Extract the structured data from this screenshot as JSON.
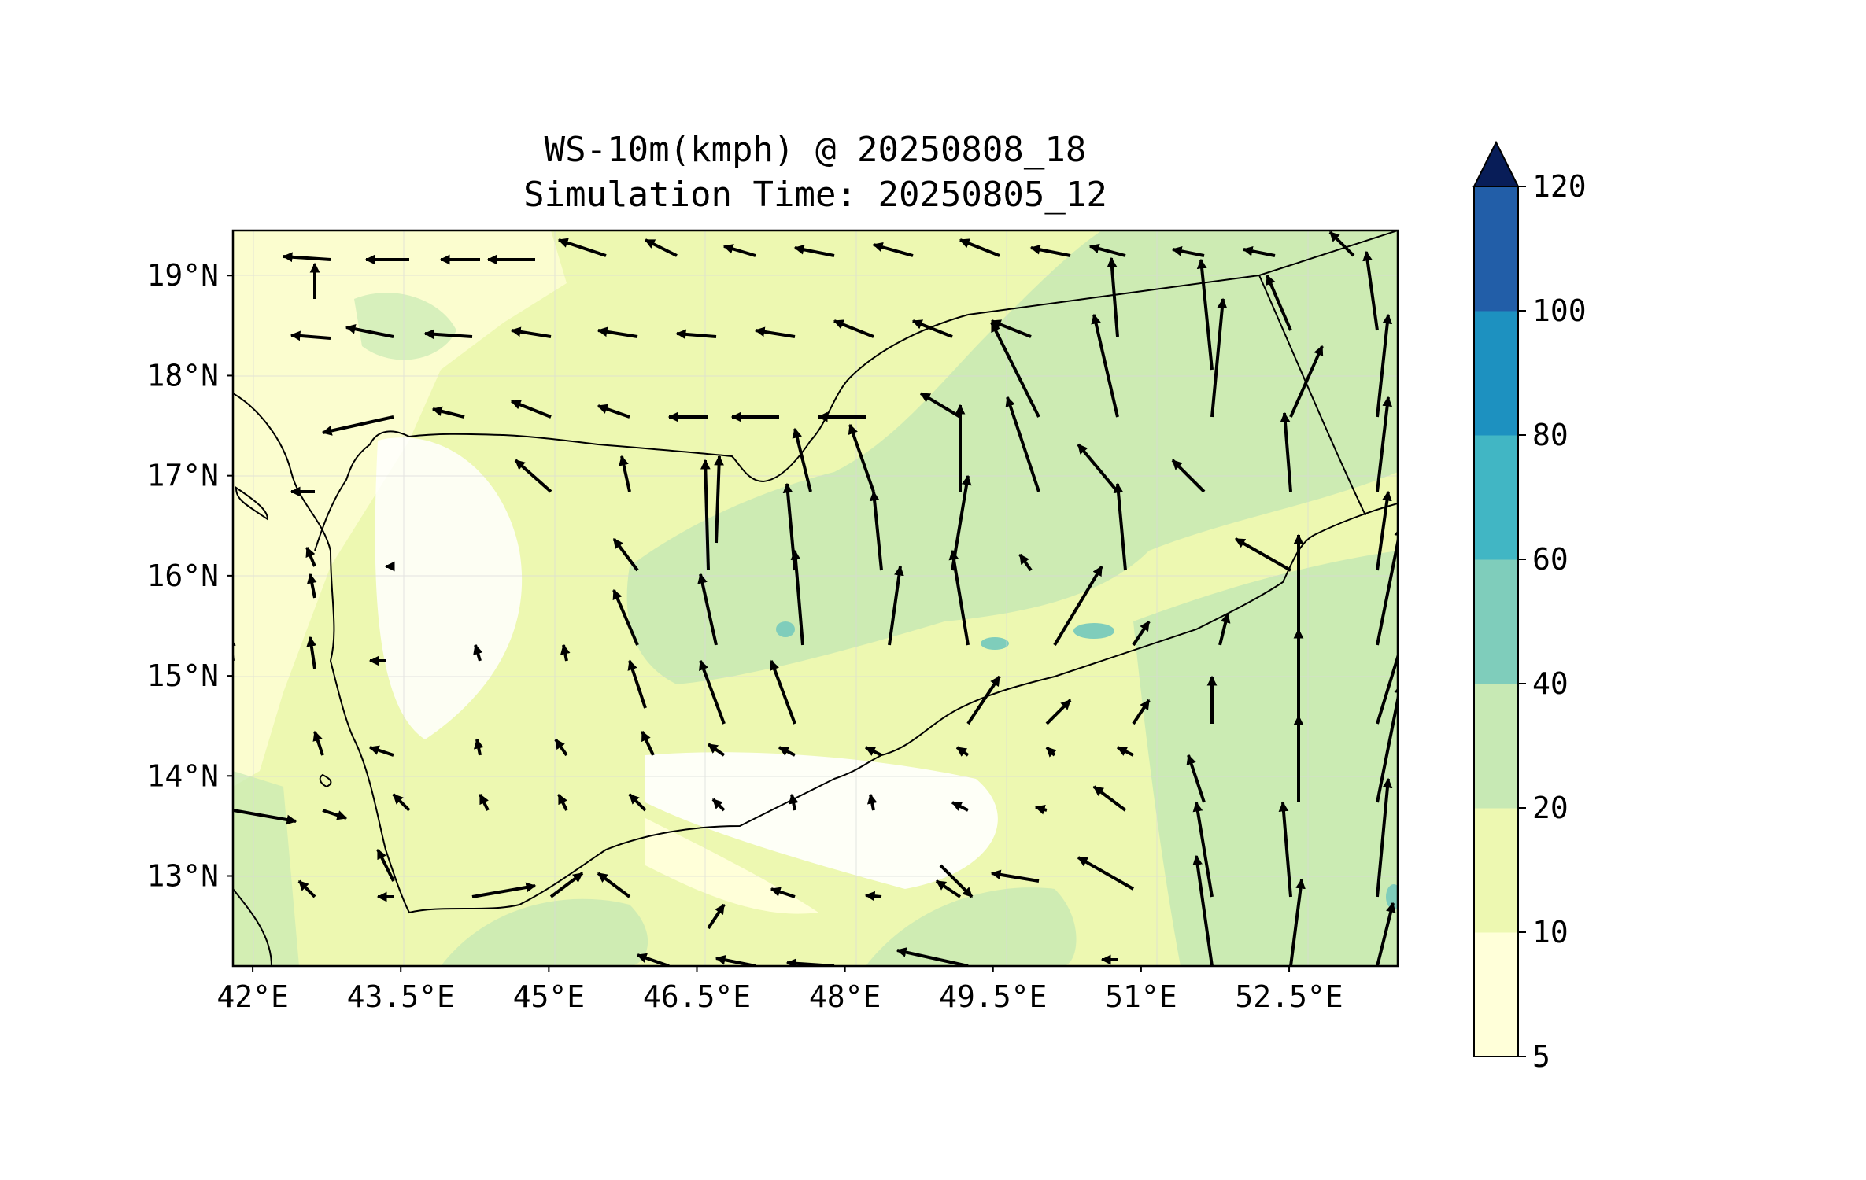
{
  "title_line1": "WS-10m(kmph) @ 20250808_18",
  "title_line2": "Simulation Time: 20250805_12",
  "map": {
    "lon_range": [
      41.8,
      53.6
    ],
    "lat_range": [
      12.1,
      19.45
    ],
    "lon_ticks": [
      "42°E",
      "43.5°E",
      "45°E",
      "46.5°E",
      "48°E",
      "49.5°E",
      "51°E",
      "52.5°E"
    ],
    "lon_tick_values": [
      42,
      43.5,
      45,
      46.5,
      48,
      49.5,
      51,
      52.5
    ],
    "lat_ticks": [
      "19°N",
      "18°N",
      "17°N",
      "16°N",
      "15°N",
      "14°N",
      "13°N"
    ],
    "lat_tick_values": [
      19,
      18,
      17,
      16,
      15,
      14,
      13
    ],
    "background_color": "#edf8b1"
  },
  "colorbar": {
    "levels": [
      "5",
      "10",
      "20",
      "40",
      "60",
      "80",
      "100",
      "120"
    ],
    "colors": [
      "#ffffd9",
      "#edf8b1",
      "#c7e9b4",
      "#7fcdbb",
      "#41b6c4",
      "#1d91c0",
      "#225ea8",
      "#0c2c84"
    ],
    "extend_color": "#081d58"
  }
}
